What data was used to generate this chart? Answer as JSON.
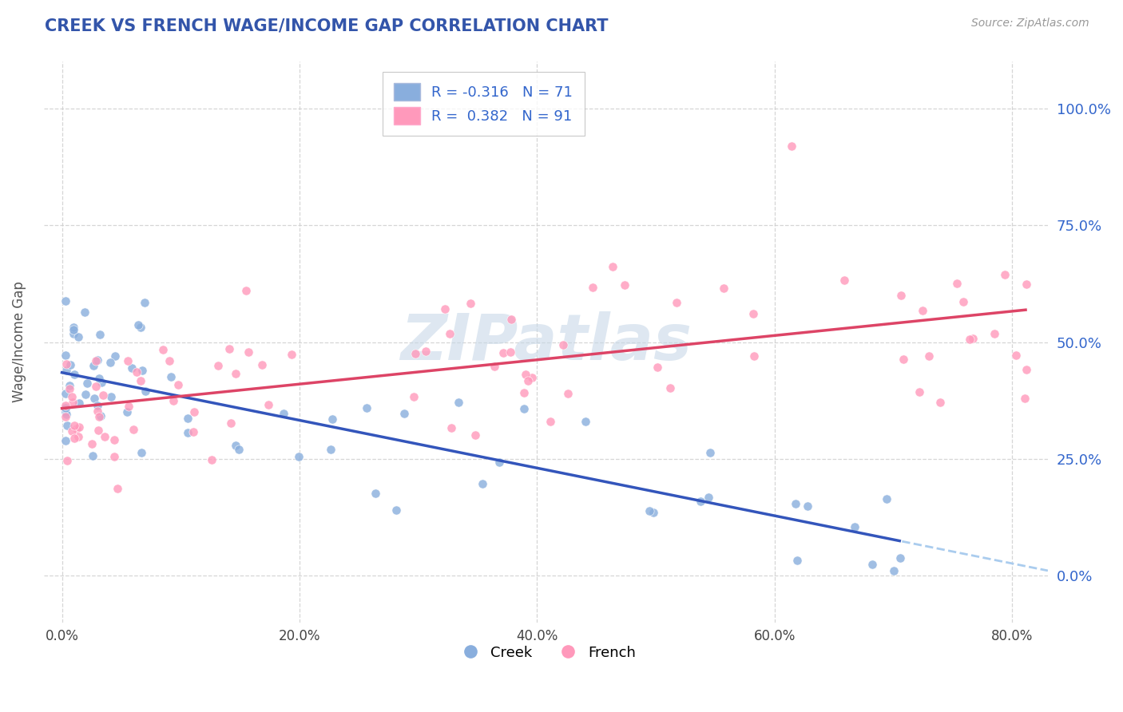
{
  "title": "CREEK VS FRENCH WAGE/INCOME GAP CORRELATION CHART",
  "source": "Source: ZipAtlas.com",
  "ylabel": "Wage/Income Gap",
  "creek_color": "#89AEDD",
  "french_color": "#FF99BB",
  "creek_line_color": "#3355BB",
  "french_line_color": "#DD4466",
  "creek_dash_color": "#AACCEE",
  "title_color": "#3355AA",
  "source_color": "#999999",
  "background_color": "#FFFFFF",
  "legend_label_color": "#3366CC",
  "creek_R": -0.316,
  "creek_N": 71,
  "french_R": 0.382,
  "french_N": 91,
  "xtick_vals": [
    0.0,
    0.2,
    0.4,
    0.6,
    0.8
  ],
  "ytick_vals": [
    0.0,
    0.25,
    0.5,
    0.75,
    1.0
  ],
  "xlim": [
    -0.015,
    0.83
  ],
  "ylim": [
    -0.1,
    1.1
  ],
  "watermark_color": "#C8D8E8",
  "creek_intercept": 0.42,
  "creek_slope": -0.5,
  "french_intercept": 0.33,
  "french_slope": 0.28
}
